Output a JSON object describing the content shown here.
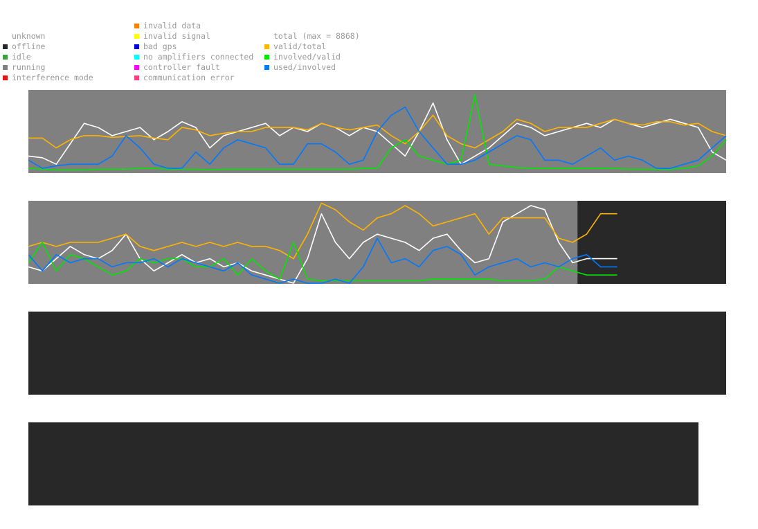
{
  "legend": {
    "status": [
      {
        "label": "unknown",
        "color": null
      },
      {
        "label": "offline",
        "color": "#282828"
      },
      {
        "label": "idle",
        "color": "#3ca03c"
      },
      {
        "label": "running",
        "color": "#808080"
      },
      {
        "label": "interference mode",
        "color": "#e61414"
      }
    ],
    "faults": [
      {
        "label": "invalid data",
        "color": "#ff8000"
      },
      {
        "label": "invalid signal",
        "color": "#ffff00"
      },
      {
        "label": "bad gps",
        "color": "#0000e6"
      },
      {
        "label": "no amplifiers connected",
        "color": "#00ffff"
      },
      {
        "label": "controller fault",
        "color": "#ff00ff"
      },
      {
        "label": "communication error",
        "color": "#ff4080"
      }
    ],
    "ratios": [
      {
        "label": "total (max = 8868)",
        "color": null
      },
      {
        "label": "valid/total",
        "color": "#ffb400"
      },
      {
        "label": "involved/valid",
        "color": "#00e600"
      },
      {
        "label": "used/involved",
        "color": "#0078ff"
      }
    ]
  },
  "colors": {
    "running_bg": "#808080",
    "offline_bg": "#282828",
    "total": "#ffffff",
    "valid_total": "#ffb400",
    "involved_valid": "#00e600",
    "used_involved": "#0078ff"
  },
  "chart_data": [
    {
      "type": "line",
      "panel": 1,
      "status_coverage_fraction": 1.0,
      "y_range": [
        0,
        1
      ],
      "x": [
        0,
        0.02,
        0.04,
        0.06,
        0.08,
        0.1,
        0.12,
        0.14,
        0.16,
        0.18,
        0.2,
        0.22,
        0.24,
        0.26,
        0.28,
        0.3,
        0.32,
        0.34,
        0.36,
        0.38,
        0.4,
        0.42,
        0.44,
        0.46,
        0.48,
        0.5,
        0.52,
        0.54,
        0.56,
        0.58,
        0.6,
        0.62,
        0.64,
        0.66,
        0.68,
        0.7,
        0.72,
        0.74,
        0.76,
        0.78,
        0.8,
        0.82,
        0.84,
        0.86,
        0.88,
        0.9,
        0.92,
        0.94,
        0.96,
        0.98,
        1.0
      ],
      "series": [
        {
          "key": "total",
          "values": [
            0.2,
            0.18,
            0.1,
            0.35,
            0.6,
            0.55,
            0.45,
            0.5,
            0.55,
            0.4,
            0.5,
            0.62,
            0.55,
            0.3,
            0.45,
            0.5,
            0.55,
            0.6,
            0.45,
            0.55,
            0.5,
            0.6,
            0.55,
            0.45,
            0.55,
            0.5,
            0.35,
            0.2,
            0.5,
            0.85,
            0.4,
            0.1,
            0.2,
            0.3,
            0.45,
            0.6,
            0.55,
            0.45,
            0.5,
            0.55,
            0.6,
            0.55,
            0.65,
            0.6,
            0.55,
            0.6,
            0.65,
            0.6,
            0.55,
            0.25,
            0.15
          ]
        },
        {
          "key": "valid_total",
          "values": [
            0.42,
            0.42,
            0.3,
            0.4,
            0.45,
            0.45,
            0.43,
            0.44,
            0.45,
            0.42,
            0.4,
            0.55,
            0.52,
            0.45,
            0.48,
            0.5,
            0.5,
            0.55,
            0.55,
            0.55,
            0.52,
            0.6,
            0.55,
            0.52,
            0.55,
            0.58,
            0.45,
            0.35,
            0.5,
            0.7,
            0.45,
            0.35,
            0.3,
            0.4,
            0.5,
            0.65,
            0.6,
            0.5,
            0.55,
            0.55,
            0.55,
            0.6,
            0.65,
            0.6,
            0.58,
            0.62,
            0.62,
            0.58,
            0.6,
            0.5,
            0.45
          ]
        },
        {
          "key": "involved_valid",
          "values": [
            0.05,
            0.04,
            0.03,
            0.03,
            0.03,
            0.04,
            0.04,
            0.04,
            0.05,
            0.05,
            0.04,
            0.04,
            0.04,
            0.03,
            0.04,
            0.04,
            0.04,
            0.04,
            0.04,
            0.04,
            0.04,
            0.04,
            0.04,
            0.04,
            0.05,
            0.05,
            0.3,
            0.4,
            0.2,
            0.15,
            0.1,
            0.15,
            0.95,
            0.1,
            0.08,
            0.06,
            0.05,
            0.05,
            0.05,
            0.05,
            0.05,
            0.05,
            0.05,
            0.04,
            0.04,
            0.04,
            0.04,
            0.05,
            0.08,
            0.2,
            0.4
          ]
        },
        {
          "key": "used_involved",
          "values": [
            0.15,
            0.05,
            0.08,
            0.1,
            0.1,
            0.1,
            0.2,
            0.45,
            0.3,
            0.1,
            0.05,
            0.05,
            0.25,
            0.1,
            0.3,
            0.4,
            0.35,
            0.3,
            0.1,
            0.1,
            0.35,
            0.35,
            0.25,
            0.1,
            0.15,
            0.5,
            0.7,
            0.8,
            0.5,
            0.3,
            0.1,
            0.1,
            0.15,
            0.25,
            0.35,
            0.45,
            0.4,
            0.15,
            0.15,
            0.1,
            0.2,
            0.3,
            0.15,
            0.2,
            0.15,
            0.05,
            0.05,
            0.1,
            0.15,
            0.3,
            0.45
          ]
        }
      ]
    },
    {
      "type": "line",
      "panel": 2,
      "status_coverage_fraction": 0.787,
      "y_range": [
        0,
        1
      ],
      "x": [
        0,
        0.02,
        0.04,
        0.06,
        0.08,
        0.1,
        0.12,
        0.14,
        0.16,
        0.18,
        0.2,
        0.22,
        0.24,
        0.26,
        0.28,
        0.3,
        0.32,
        0.34,
        0.36,
        0.38,
        0.4,
        0.42,
        0.44,
        0.46,
        0.48,
        0.5,
        0.52,
        0.54,
        0.56,
        0.58,
        0.6,
        0.62,
        0.64,
        0.66,
        0.68,
        0.7,
        0.72,
        0.74,
        0.76,
        0.78,
        0.8,
        0.82
      ],
      "series": [
        {
          "key": "total",
          "values": [
            0.2,
            0.15,
            0.3,
            0.45,
            0.35,
            0.3,
            0.4,
            0.6,
            0.3,
            0.15,
            0.25,
            0.35,
            0.25,
            0.3,
            0.2,
            0.25,
            0.15,
            0.1,
            0.05,
            0.0,
            0.3,
            0.85,
            0.5,
            0.3,
            0.5,
            0.6,
            0.55,
            0.5,
            0.4,
            0.55,
            0.6,
            0.4,
            0.25,
            0.3,
            0.75,
            0.85,
            0.95,
            0.9,
            0.5,
            0.25,
            0.3,
            0.3
          ]
        },
        {
          "key": "valid_total",
          "values": [
            0.45,
            0.5,
            0.45,
            0.5,
            0.5,
            0.5,
            0.55,
            0.6,
            0.45,
            0.4,
            0.45,
            0.5,
            0.45,
            0.5,
            0.45,
            0.5,
            0.45,
            0.45,
            0.4,
            0.3,
            0.6,
            0.98,
            0.9,
            0.75,
            0.65,
            0.8,
            0.85,
            0.95,
            0.85,
            0.7,
            0.75,
            0.8,
            0.85,
            0.6,
            0.8,
            0.8,
            0.8,
            0.8,
            0.55,
            0.5,
            0.6,
            0.85
          ]
        },
        {
          "key": "involved_valid",
          "values": [
            0.25,
            0.5,
            0.15,
            0.35,
            0.3,
            0.2,
            0.1,
            0.15,
            0.3,
            0.25,
            0.3,
            0.3,
            0.2,
            0.2,
            0.3,
            0.1,
            0.3,
            0.15,
            0.05,
            0.5,
            0.05,
            0.03,
            0.03,
            0.03,
            0.03,
            0.03,
            0.03,
            0.03,
            0.03,
            0.05,
            0.05,
            0.05,
            0.05,
            0.05,
            0.03,
            0.03,
            0.03,
            0.05,
            0.2,
            0.15,
            0.1,
            0.1
          ]
        },
        {
          "key": "used_involved",
          "values": [
            0.35,
            0.15,
            0.35,
            0.25,
            0.3,
            0.3,
            0.2,
            0.25,
            0.25,
            0.3,
            0.2,
            0.3,
            0.25,
            0.2,
            0.15,
            0.25,
            0.1,
            0.05,
            0.0,
            0.05,
            0.0,
            0.0,
            0.05,
            0.0,
            0.2,
            0.55,
            0.25,
            0.3,
            0.2,
            0.4,
            0.45,
            0.35,
            0.1,
            0.2,
            0.25,
            0.3,
            0.2,
            0.25,
            0.2,
            0.3,
            0.35,
            0.2
          ]
        }
      ]
    },
    {
      "type": "line",
      "panel": 3,
      "status_coverage_fraction": 0.0,
      "series": []
    },
    {
      "type": "line",
      "panel": 4,
      "status_coverage_fraction": 0.0,
      "series": []
    }
  ]
}
